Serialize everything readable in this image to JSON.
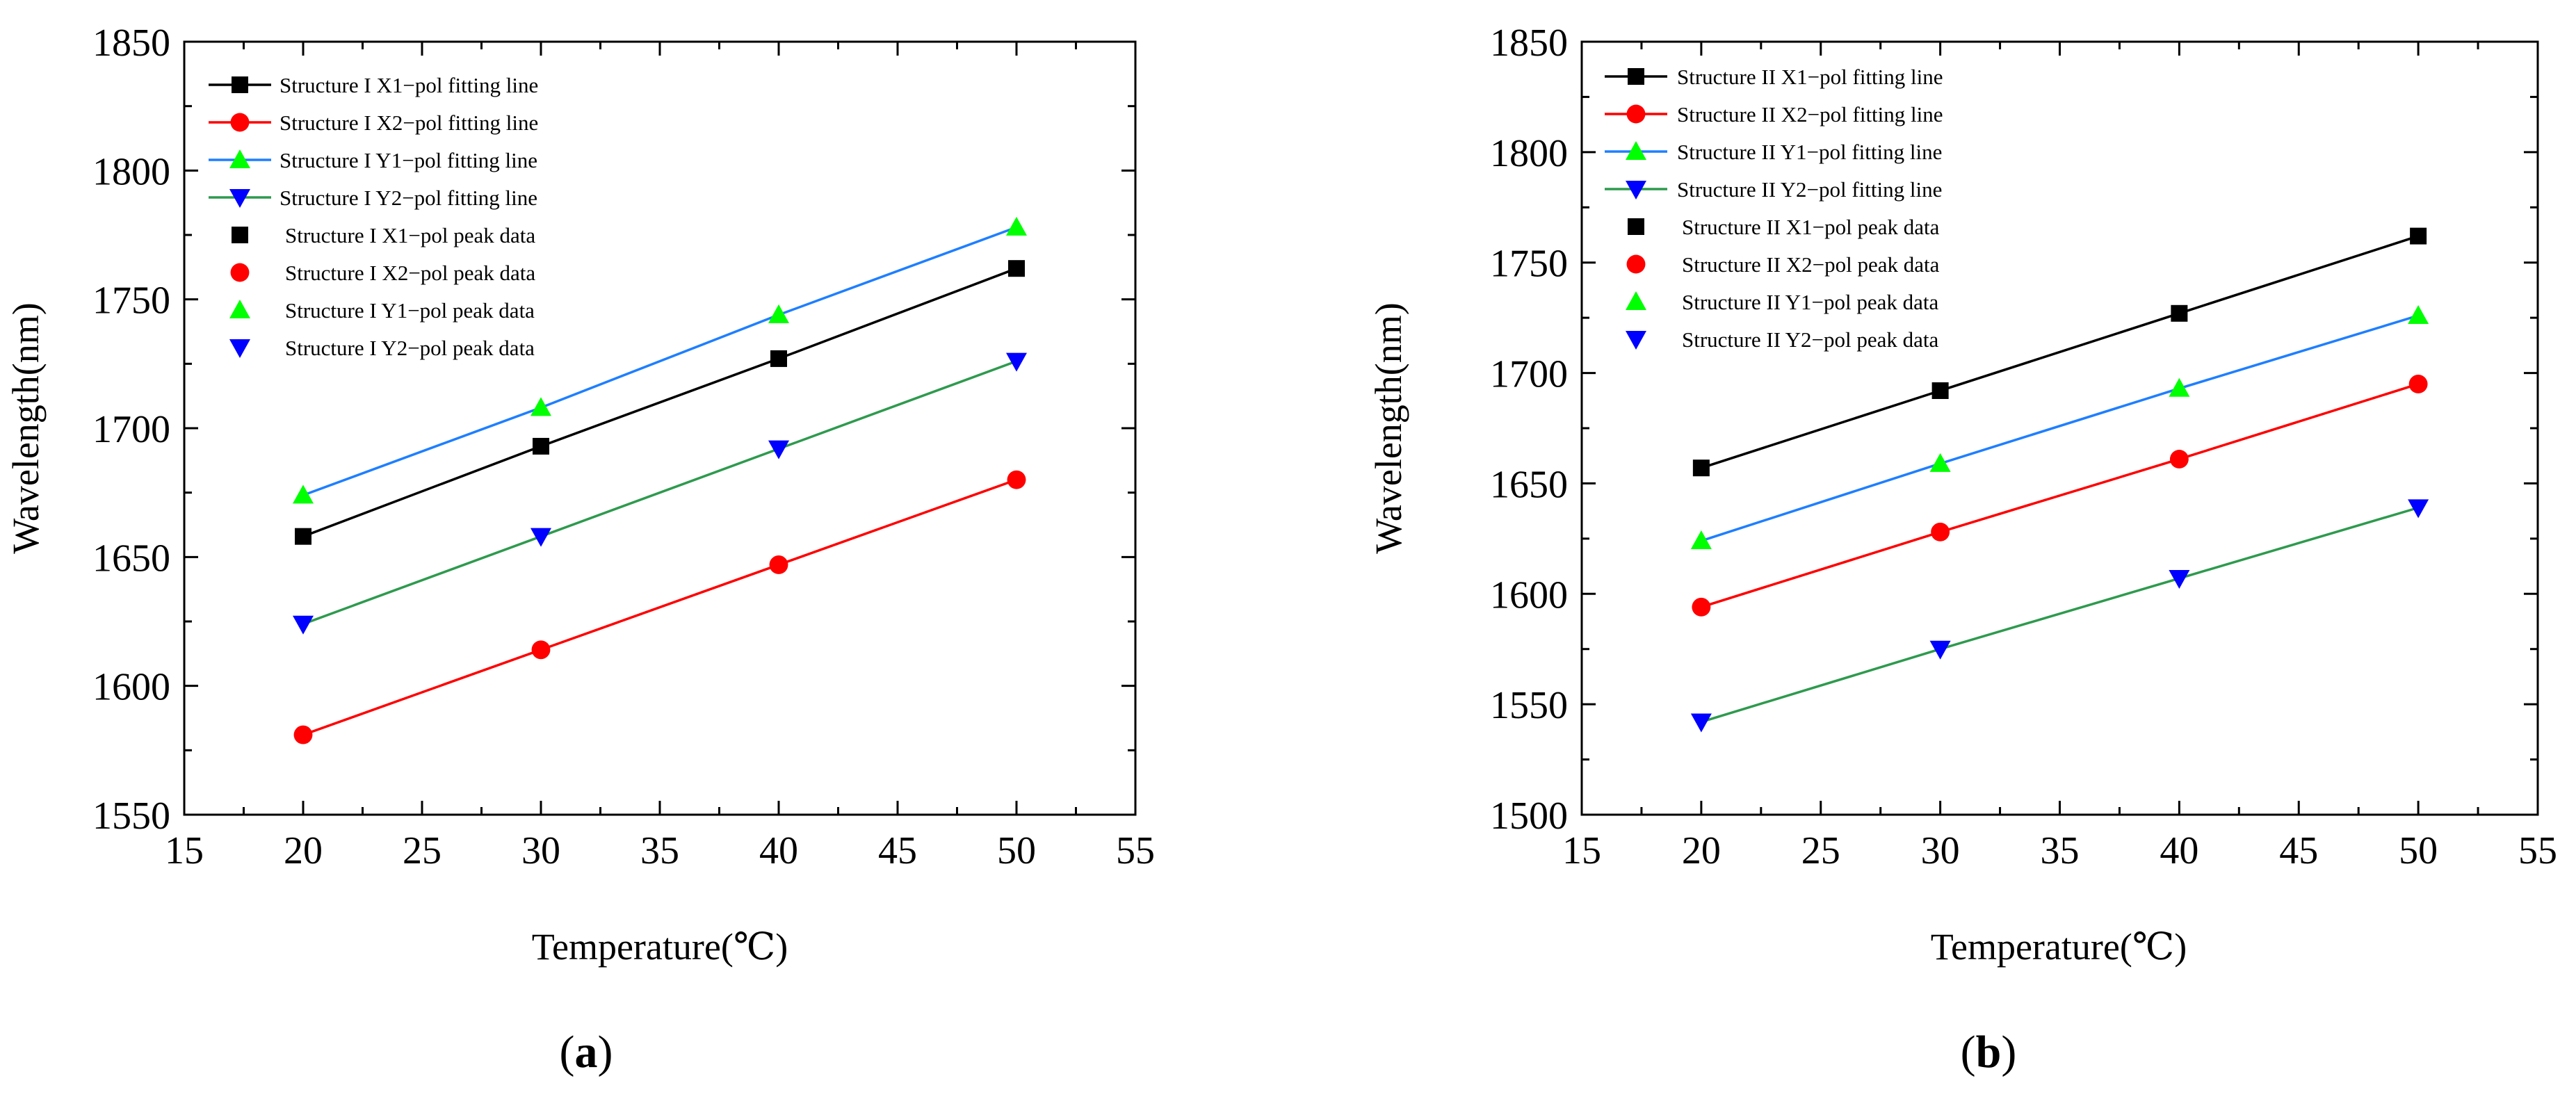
{
  "chart_data": [
    {
      "type": "line",
      "caption": {
        "open": "(",
        "letter": "a",
        "close": ")"
      },
      "xlabel": "Temperature(℃)",
      "ylabel": "Wavelength(nm)",
      "xlim": [
        15,
        55
      ],
      "ylim": [
        1550,
        1850
      ],
      "xticks": [
        15,
        20,
        25,
        30,
        35,
        40,
        45,
        50,
        55
      ],
      "yticks": [
        1550,
        1600,
        1650,
        1700,
        1750,
        1800,
        1850
      ],
      "x": [
        20,
        30,
        40,
        50
      ],
      "series": [
        {
          "name": "X1",
          "color": "#000000",
          "marker": "square",
          "line_label": "Structure I X1−pol fitting line",
          "data_label": "Structure I X1−pol peak data",
          "values": [
            1658,
            1693,
            1727,
            1762
          ]
        },
        {
          "name": "X2",
          "color": "#ff0000",
          "marker": "circle",
          "line_label": "Structure I X2−pol fitting line",
          "data_label": "Structure I X2−pol peak data",
          "values": [
            1581,
            1614,
            1647,
            1680
          ]
        },
        {
          "name": "Y1",
          "color": "#00ff00",
          "line_color": "#1e7fff",
          "marker": "triangle-up",
          "line_label": "Structure I Y1−pol fitting line",
          "data_label": "Structure I Y1−pol peak data",
          "values": [
            1674,
            1708,
            1744,
            1778
          ]
        },
        {
          "name": "Y2",
          "color": "#0000ff",
          "line_color": "#2e9a4e",
          "marker": "triangle-down",
          "line_label": "Structure I Y2−pol fitting line",
          "data_label": "Structure I Y2−pol peak data",
          "values": [
            1624,
            1658,
            1692,
            1726
          ]
        }
      ]
    },
    {
      "type": "line",
      "caption": {
        "open": "(",
        "letter": "b",
        "close": ")"
      },
      "xlabel": "Temperature(℃)",
      "ylabel": "Wavelength(nm)",
      "xlim": [
        15,
        55
      ],
      "ylim": [
        1500,
        1850
      ],
      "xticks": [
        15,
        20,
        25,
        30,
        35,
        40,
        45,
        50,
        55
      ],
      "yticks": [
        1500,
        1550,
        1600,
        1650,
        1700,
        1750,
        1800,
        1850
      ],
      "x": [
        20,
        30,
        40,
        50
      ],
      "series": [
        {
          "name": "X1",
          "color": "#000000",
          "marker": "square",
          "line_label": "Structure II X1−pol fitting line",
          "data_label": "Structure II X1−pol peak data",
          "values": [
            1657,
            1692,
            1727,
            1762
          ]
        },
        {
          "name": "X2",
          "color": "#ff0000",
          "marker": "circle",
          "line_label": "Structure II X2−pol fitting line",
          "data_label": "Structure II X2−pol peak data",
          "values": [
            1594,
            1628,
            1661,
            1695
          ]
        },
        {
          "name": "Y1",
          "color": "#00ff00",
          "line_color": "#1e7fff",
          "marker": "triangle-up",
          "line_label": "Structure II Y1−pol fitting line",
          "data_label": "Structure II Y1−pol peak data",
          "values": [
            1624,
            1659,
            1693,
            1726
          ]
        },
        {
          "name": "Y2",
          "color": "#0000ff",
          "line_color": "#2e9a4e",
          "marker": "triangle-down",
          "line_label": "Structure II Y2−pol fitting line",
          "data_label": "Structure II Y2−pol peak data",
          "values": [
            1542,
            1575,
            1607,
            1639
          ]
        }
      ]
    }
  ]
}
